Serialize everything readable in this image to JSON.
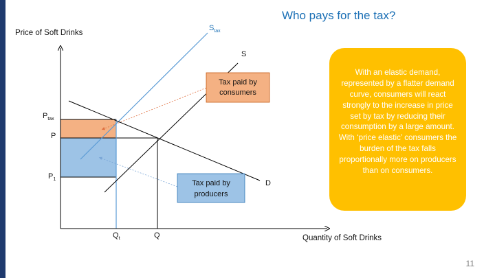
{
  "slide": {
    "title": "Who pays for the tax?",
    "page_number": "11",
    "accent_color": "#1f3a6e"
  },
  "diagram": {
    "y_axis_label": "Price of Soft Drinks",
    "x_axis_label": "Quantity of Soft Drinks",
    "curves": {
      "s_tax_label": "S",
      "s_tax_subscript": "tax",
      "s_label": "S",
      "d_label": "D"
    },
    "price_labels": {
      "p_tax": "P",
      "p_tax_subscript": "tax",
      "p": "P",
      "p1": "P",
      "p1_subscript": "1"
    },
    "quantity_labels": {
      "qt": "Q",
      "qt_subscript": "t",
      "q": "Q"
    },
    "boxes": {
      "consumers_line1": "Tax paid by",
      "consumers_line2": "consumers",
      "producers_line1": "Tax paid by",
      "producers_line2": "producers"
    },
    "colors": {
      "consumer_area": "#f4b183",
      "producer_area": "#9dc3e6",
      "s_tax_line": "#5b9bd5",
      "curve_line": "#000000"
    }
  },
  "callout": {
    "text": "With an elastic demand, represented by a flatter demand curve, consumers will react strongly to the increase in price set by tax by reducing their consumption by a large amount. With ‘price elastic’ consumers the burden of the tax falls proportionally more on producers than on consumers.",
    "color": "#ffc000"
  }
}
